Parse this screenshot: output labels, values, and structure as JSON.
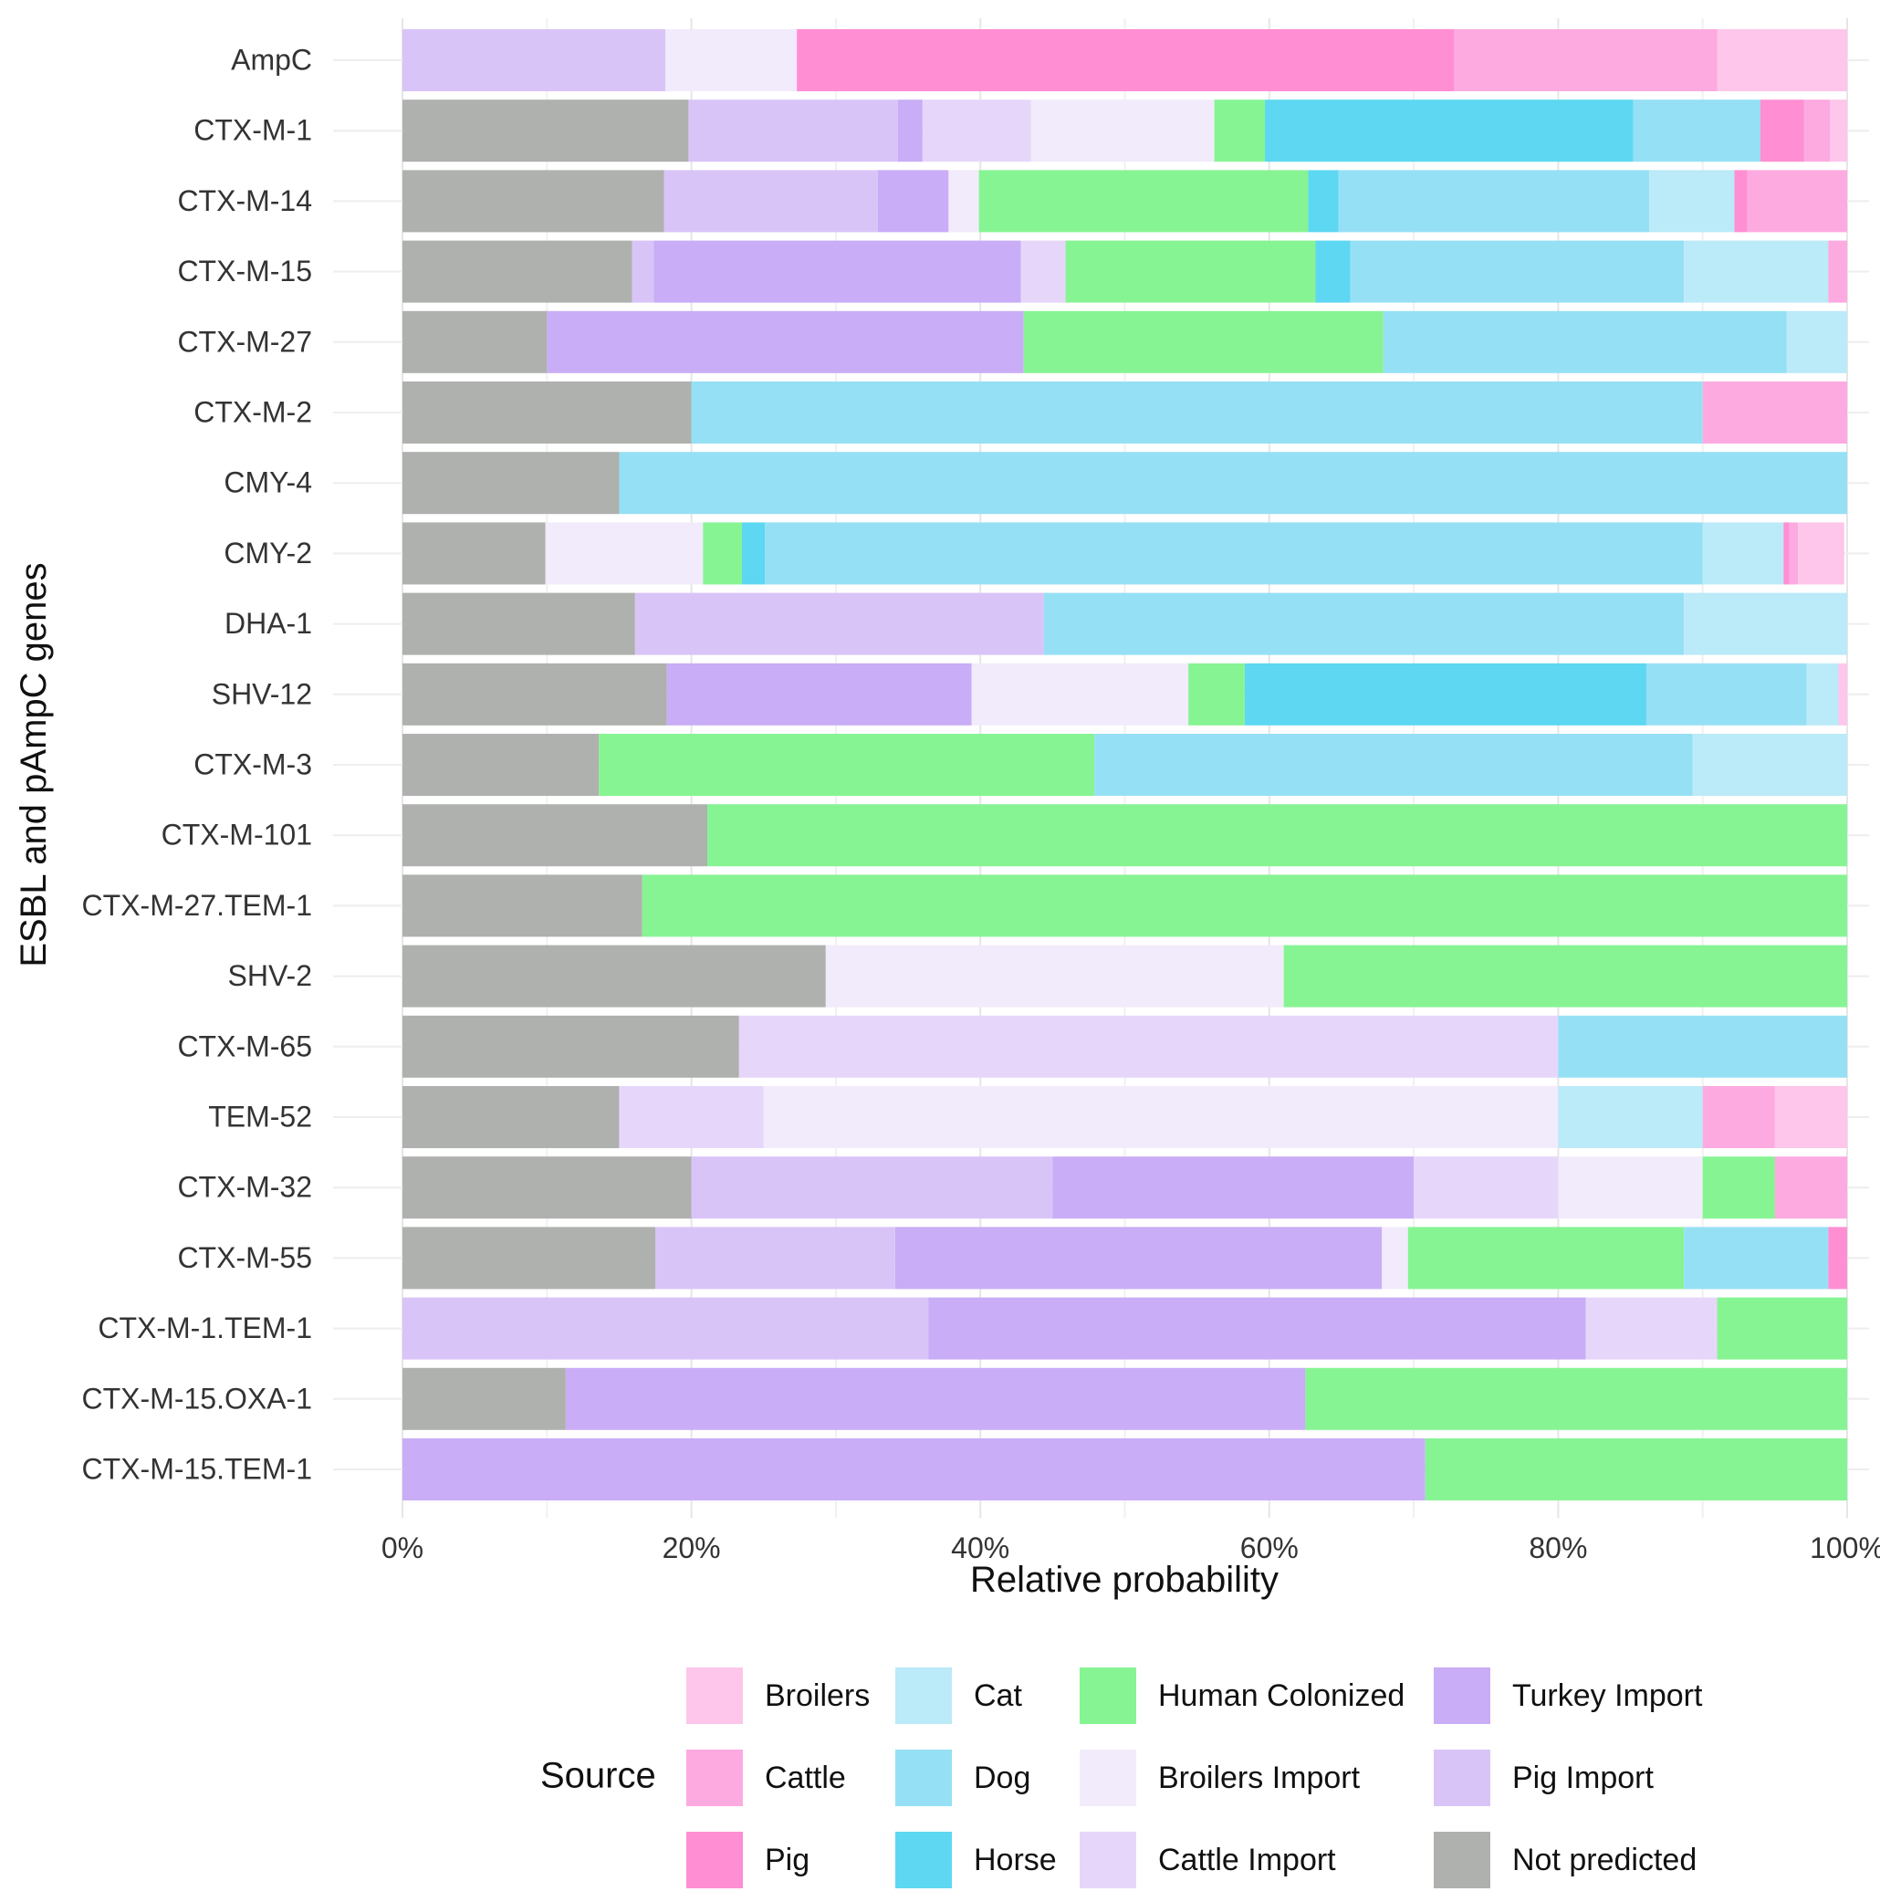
{
  "chart_data": {
    "type": "bar",
    "orientation": "horizontal",
    "stacked": true,
    "title": "",
    "xlabel": "Relative probability",
    "ylabel": "ESBL and pAmpC genes",
    "xlim": [
      0,
      100
    ],
    "x_ticks": [
      "0%",
      "20%",
      "40%",
      "60%",
      "80%",
      "100%"
    ],
    "grid": true,
    "legend_position": "bottom",
    "legend_title": "Source",
    "series": [
      {
        "name": "Not predicted",
        "color": "#AEB1AD"
      },
      {
        "name": "Pig Import",
        "color": "#D9C4F8"
      },
      {
        "name": "Turkey Import",
        "color": "#C9ADF6"
      },
      {
        "name": "Cattle Import",
        "color": "#E6D7FA"
      },
      {
        "name": "Broilers Import",
        "color": "#F2EBFB"
      },
      {
        "name": "Human Colonized",
        "color": "#87F493"
      },
      {
        "name": "Horse",
        "color": "#5DD7F2"
      },
      {
        "name": "Dog",
        "color": "#96E0F5"
      },
      {
        "name": "Cat",
        "color": "#BBEAF8"
      },
      {
        "name": "Pig",
        "color": "#FF8ED3"
      },
      {
        "name": "Cattle",
        "color": "#FDAAE0"
      },
      {
        "name": "Broilers",
        "color": "#FDC6EA"
      }
    ],
    "legend_layout": [
      [
        "Broilers",
        "Cattle",
        "Pig"
      ],
      [
        "Cat",
        "Dog",
        "Horse"
      ],
      [
        "Human Colonized",
        "Broilers Import",
        "Cattle Import"
      ],
      [
        "Turkey Import",
        "Pig Import",
        "Not predicted"
      ]
    ],
    "categories": [
      {
        "gene": "AmpC",
        "segments": [
          {
            "source": "Pig Import",
            "value": 18.2
          },
          {
            "source": "Broilers Import",
            "value": 9.1
          },
          {
            "source": "Pig",
            "value": 45.5
          },
          {
            "source": "Cattle",
            "value": 18.2
          },
          {
            "source": "Broilers",
            "value": 9.0
          }
        ]
      },
      {
        "gene": "CTX-M-1",
        "segments": [
          {
            "source": "Not predicted",
            "value": 19.8
          },
          {
            "source": "Pig Import",
            "value": 14.5
          },
          {
            "source": "Turkey Import",
            "value": 1.7
          },
          {
            "source": "Cattle Import",
            "value": 7.5
          },
          {
            "source": "Broilers Import",
            "value": 12.7
          },
          {
            "source": "Human Colonized",
            "value": 3.5
          },
          {
            "source": "Horse",
            "value": 25.5
          },
          {
            "source": "Dog",
            "value": 8.8
          },
          {
            "source": "Pig",
            "value": 3.0
          },
          {
            "source": "Cattle",
            "value": 1.8
          },
          {
            "source": "Broilers",
            "value": 1.2
          }
        ]
      },
      {
        "gene": "CTX-M-14",
        "segments": [
          {
            "source": "Not predicted",
            "value": 18.1
          },
          {
            "source": "Pig Import",
            "value": 14.8
          },
          {
            "source": "Turkey Import",
            "value": 4.9
          },
          {
            "source": "Broilers Import",
            "value": 2.1
          },
          {
            "source": "Human Colonized",
            "value": 22.8
          },
          {
            "source": "Horse",
            "value": 2.1
          },
          {
            "source": "Dog",
            "value": 21.5
          },
          {
            "source": "Cat",
            "value": 5.9
          },
          {
            "source": "Pig",
            "value": 0.9
          },
          {
            "source": "Cattle",
            "value": 6.9
          }
        ]
      },
      {
        "gene": "CTX-M-15",
        "segments": [
          {
            "source": "Not predicted",
            "value": 15.9
          },
          {
            "source": "Pig Import",
            "value": 1.5
          },
          {
            "source": "Turkey Import",
            "value": 25.4
          },
          {
            "source": "Cattle Import",
            "value": 3.1
          },
          {
            "source": "Human Colonized",
            "value": 17.3
          },
          {
            "source": "Horse",
            "value": 2.4
          },
          {
            "source": "Dog",
            "value": 23.1
          },
          {
            "source": "Cat",
            "value": 10.0
          },
          {
            "source": "Cattle",
            "value": 1.3
          }
        ]
      },
      {
        "gene": "CTX-M-27",
        "segments": [
          {
            "source": "Not predicted",
            "value": 10.0
          },
          {
            "source": "Turkey Import",
            "value": 33.0
          },
          {
            "source": "Human Colonized",
            "value": 24.9
          },
          {
            "source": "Dog",
            "value": 27.9
          },
          {
            "source": "Cat",
            "value": 4.2
          }
        ]
      },
      {
        "gene": "CTX-M-2",
        "segments": [
          {
            "source": "Not predicted",
            "value": 20.0
          },
          {
            "source": "Dog",
            "value": 70.0
          },
          {
            "source": "Cattle",
            "value": 10.0
          }
        ]
      },
      {
        "gene": "CMY-4",
        "segments": [
          {
            "source": "Not predicted",
            "value": 15.0
          },
          {
            "source": "Dog",
            "value": 85.0
          }
        ]
      },
      {
        "gene": "CMY-2",
        "segments": [
          {
            "source": "Not predicted",
            "value": 9.9
          },
          {
            "source": "Broilers Import",
            "value": 10.9
          },
          {
            "source": "Human Colonized",
            "value": 2.7
          },
          {
            "source": "Horse",
            "value": 1.6
          },
          {
            "source": "Dog",
            "value": 64.9
          },
          {
            "source": "Cat",
            "value": 5.6
          },
          {
            "source": "Pig",
            "value": 0.4
          },
          {
            "source": "Cattle",
            "value": 0.6
          },
          {
            "source": "Broilers",
            "value": 3.2
          }
        ]
      },
      {
        "gene": "DHA-1",
        "segments": [
          {
            "source": "Not predicted",
            "value": 16.1
          },
          {
            "source": "Pig Import",
            "value": 28.3
          },
          {
            "source": "Dog",
            "value": 44.3
          },
          {
            "source": "Cat",
            "value": 11.3
          }
        ]
      },
      {
        "gene": "SHV-12",
        "segments": [
          {
            "source": "Not predicted",
            "value": 18.3
          },
          {
            "source": "Turkey Import",
            "value": 21.1
          },
          {
            "source": "Broilers Import",
            "value": 15.0
          },
          {
            "source": "Human Colonized",
            "value": 3.9
          },
          {
            "source": "Horse",
            "value": 27.8
          },
          {
            "source": "Dog",
            "value": 11.1
          },
          {
            "source": "Cat",
            "value": 2.2
          },
          {
            "source": "Broilers",
            "value": 0.6
          }
        ]
      },
      {
        "gene": "CTX-M-3",
        "segments": [
          {
            "source": "Not predicted",
            "value": 13.6
          },
          {
            "source": "Human Colonized",
            "value": 34.3
          },
          {
            "source": "Dog",
            "value": 41.4
          },
          {
            "source": "Cat",
            "value": 10.7
          }
        ]
      },
      {
        "gene": "CTX-M-101",
        "segments": [
          {
            "source": "Not predicted",
            "value": 21.1
          },
          {
            "source": "Human Colonized",
            "value": 78.9
          }
        ]
      },
      {
        "gene": "CTX-M-27.TEM-1",
        "segments": [
          {
            "source": "Not predicted",
            "value": 16.6
          },
          {
            "source": "Human Colonized",
            "value": 83.4
          }
        ]
      },
      {
        "gene": "SHV-2",
        "segments": [
          {
            "source": "Not predicted",
            "value": 29.3
          },
          {
            "source": "Broilers Import",
            "value": 31.7
          },
          {
            "source": "Human Colonized",
            "value": 39.0
          }
        ]
      },
      {
        "gene": "CTX-M-65",
        "segments": [
          {
            "source": "Not predicted",
            "value": 23.3
          },
          {
            "source": "Cattle Import",
            "value": 56.7
          },
          {
            "source": "Dog",
            "value": 20.0
          }
        ]
      },
      {
        "gene": "TEM-52",
        "segments": [
          {
            "source": "Not predicted",
            "value": 15.0
          },
          {
            "source": "Cattle Import",
            "value": 10.0
          },
          {
            "source": "Broilers Import",
            "value": 55.0
          },
          {
            "source": "Cat",
            "value": 10.0
          },
          {
            "source": "Cattle",
            "value": 5.0
          },
          {
            "source": "Broilers",
            "value": 5.0
          }
        ]
      },
      {
        "gene": "CTX-M-32",
        "segments": [
          {
            "source": "Not predicted",
            "value": 20.0
          },
          {
            "source": "Pig Import",
            "value": 25.0
          },
          {
            "source": "Turkey Import",
            "value": 25.0
          },
          {
            "source": "Cattle Import",
            "value": 10.0
          },
          {
            "source": "Broilers Import",
            "value": 10.0
          },
          {
            "source": "Human Colonized",
            "value": 5.0
          },
          {
            "source": "Cattle",
            "value": 5.0
          }
        ]
      },
      {
        "gene": "CTX-M-55",
        "segments": [
          {
            "source": "Not predicted",
            "value": 17.5
          },
          {
            "source": "Pig Import",
            "value": 16.6
          },
          {
            "source": "Turkey Import",
            "value": 33.7
          },
          {
            "source": "Broilers Import",
            "value": 1.8
          },
          {
            "source": "Human Colonized",
            "value": 19.1
          },
          {
            "source": "Dog",
            "value": 10.0
          },
          {
            "source": "Pig",
            "value": 1.3
          }
        ]
      },
      {
        "gene": "CTX-M-1.TEM-1",
        "segments": [
          {
            "source": "Pig Import",
            "value": 36.4
          },
          {
            "source": "Turkey Import",
            "value": 45.5
          },
          {
            "source": "Cattle Import",
            "value": 9.1
          },
          {
            "source": "Human Colonized",
            "value": 9.0
          }
        ]
      },
      {
        "gene": "CTX-M-15.OXA-1",
        "segments": [
          {
            "source": "Not predicted",
            "value": 11.3
          },
          {
            "source": "Turkey Import",
            "value": 51.2
          },
          {
            "source": "Human Colonized",
            "value": 37.5
          }
        ]
      },
      {
        "gene": "CTX-M-15.TEM-1",
        "segments": [
          {
            "source": "Turkey Import",
            "value": 70.8
          },
          {
            "source": "Human Colonized",
            "value": 29.2
          }
        ]
      }
    ]
  }
}
